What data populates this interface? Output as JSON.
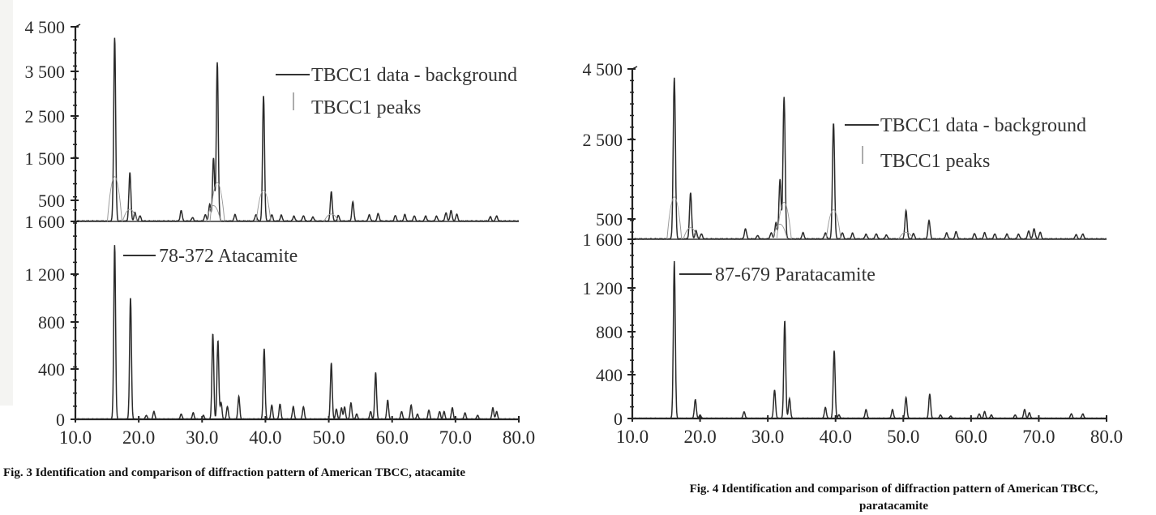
{
  "figures": [
    {
      "id": "fig3",
      "caption": "Fig. 3  Identification and comparison of diffraction pattern of American TBCC, atacamite",
      "caption_lines": [
        "Fig. 3  Identification and comparison of diffraction pattern of American TBCC, atacamite"
      ],
      "legend_top": {
        "line_label": "TBCC1 data - background",
        "peaks_label": "TBCC1 peaks"
      },
      "legend_bottom": {
        "line_label": "78-372 Atacamite"
      }
    },
    {
      "id": "fig4",
      "caption": "Fig. 4  Identification and comparison of diffraction pattern of American TBCC, paratacamite",
      "caption_lines": [
        "Fig. 4  Identification and comparison of diffraction pattern of American TBCC,",
        "paratacamite"
      ],
      "legend_top": {
        "line_label": "TBCC1 data - background",
        "peaks_label": "TBCC1 peaks"
      },
      "legend_bottom": {
        "line_label": "87-679 Paratacamite"
      }
    }
  ],
  "chart_data": [
    {
      "type": "line",
      "title": "Fig. 3  Identification and comparison of diffraction pattern of American TBCC, atacamite",
      "xlabel": "",
      "ylabel": "",
      "x_ticks": [
        "10.0",
        "20.0",
        "30.0",
        "40.0",
        "50.0",
        "60.0",
        "70.0",
        "80.0"
      ],
      "xlim": [
        10,
        80
      ],
      "panels": [
        {
          "name": "top",
          "y_ticks": [
            {
              "label": "4 500",
              "value": 4500
            },
            {
              "label": "3 500",
              "value": 3500
            },
            {
              "label": "2 500",
              "value": 2500
            },
            {
              "label": "1 500",
              "value": 1500
            },
            {
              "label": "500",
              "value": 500
            }
          ],
          "ylim": [
            0,
            4500
          ],
          "legend": [
            "TBCC1 data - background",
            "TBCC1 peaks"
          ],
          "series": [
            {
              "name": "TBCC1 data - background",
              "peaks": [
                [
                  16.2,
                  4250
                ],
                [
                  18.6,
                  1150
                ],
                [
                  19.4,
                  200
                ],
                [
                  20.2,
                  120
                ],
                [
                  26.7,
                  250
                ],
                [
                  28.5,
                  80
                ],
                [
                  30.5,
                  150
                ],
                [
                  31.2,
                  400
                ],
                [
                  31.8,
                  1500
                ],
                [
                  32.4,
                  3700
                ],
                [
                  35.2,
                  150
                ],
                [
                  38.5,
                  150
                ],
                [
                  39.7,
                  2950
                ],
                [
                  41.0,
                  150
                ],
                [
                  42.5,
                  140
                ],
                [
                  44.5,
                  120
                ],
                [
                  46.0,
                  130
                ],
                [
                  47.5,
                  100
                ],
                [
                  50.4,
                  700
                ],
                [
                  51.5,
                  130
                ],
                [
                  53.8,
                  450
                ],
                [
                  56.4,
                  150
                ],
                [
                  57.8,
                  180
                ],
                [
                  60.5,
                  130
                ],
                [
                  62.0,
                  150
                ],
                [
                  63.5,
                  120
                ],
                [
                  65.3,
                  120
                ],
                [
                  67.0,
                  120
                ],
                [
                  68.5,
                  200
                ],
                [
                  69.3,
                  250
                ],
                [
                  70.2,
                  160
                ],
                [
                  75.5,
                  100
                ],
                [
                  76.5,
                  120
                ]
              ]
            }
          ]
        },
        {
          "name": "bottom",
          "y_ticks": [
            {
              "label": "1 600",
              "value": 1600
            },
            {
              "label": "1 200",
              "value": 1200
            },
            {
              "label": "800",
              "value": 800
            },
            {
              "label": "400",
              "value": 400
            },
            {
              "label": "0",
              "value": 0
            }
          ],
          "ylim": [
            0,
            1600
          ],
          "legend": [
            "78-372 Atacamite"
          ],
          "series": [
            {
              "name": "78-372 Atacamite",
              "peaks": [
                [
                  16.2,
                  1420
                ],
                [
                  18.7,
                  1000
                ],
                [
                  21.2,
                  30
                ],
                [
                  22.4,
                  60
                ],
                [
                  26.7,
                  40
                ],
                [
                  28.6,
                  50
                ],
                [
                  30.2,
                  30
                ],
                [
                  31.7,
                  700
                ],
                [
                  32.5,
                  640
                ],
                [
                  33.0,
                  130
                ],
                [
                  34.0,
                  100
                ],
                [
                  35.8,
                  180
                ],
                [
                  39.8,
                  570
                ],
                [
                  41.0,
                  110
                ],
                [
                  42.3,
                  120
                ],
                [
                  44.4,
                  100
                ],
                [
                  46.0,
                  100
                ],
                [
                  50.4,
                  450
                ],
                [
                  51.2,
                  80
                ],
                [
                  52.0,
                  90
                ],
                [
                  52.5,
                  95
                ],
                [
                  53.5,
                  130
                ],
                [
                  54.4,
                  40
                ],
                [
                  56.6,
                  60
                ],
                [
                  57.4,
                  370
                ],
                [
                  59.3,
                  150
                ],
                [
                  61.5,
                  60
                ],
                [
                  63.0,
                  110
                ],
                [
                  64.0,
                  40
                ],
                [
                  65.8,
                  70
                ],
                [
                  67.5,
                  60
                ],
                [
                  68.2,
                  60
                ],
                [
                  69.5,
                  90
                ],
                [
                  71.5,
                  50
                ],
                [
                  73.5,
                  30
                ],
                [
                  75.9,
                  90
                ],
                [
                  76.5,
                  60
                ]
              ]
            }
          ]
        }
      ]
    },
    {
      "type": "line",
      "title": "Fig. 4  Identification and comparison of diffraction pattern of American TBCC, paratacamite",
      "xlabel": "",
      "ylabel": "",
      "x_ticks": [
        "10.0",
        "20.0",
        "30.0",
        "40.0",
        "50.0",
        "60.0",
        "70.0",
        "80.0"
      ],
      "xlim": [
        10,
        80
      ],
      "panels": [
        {
          "name": "top",
          "y_ticks": [
            {
              "label": "4 500",
              "value": 4500
            },
            {
              "label": "2 500",
              "value": 2500
            },
            {
              "label": "500",
              "value": 500
            }
          ],
          "ylim": [
            0,
            4500
          ],
          "legend": [
            "TBCC1 data - background",
            "TBCC1 peaks"
          ],
          "series": [
            {
              "name": "TBCC1 data - background",
              "peaks": [
                [
                  16.2,
                  4250
                ],
                [
                  18.6,
                  1150
                ],
                [
                  19.4,
                  200
                ],
                [
                  20.2,
                  120
                ],
                [
                  26.7,
                  250
                ],
                [
                  28.5,
                  80
                ],
                [
                  30.5,
                  150
                ],
                [
                  31.2,
                  400
                ],
                [
                  31.8,
                  1500
                ],
                [
                  32.4,
                  3700
                ],
                [
                  35.2,
                  150
                ],
                [
                  38.5,
                  150
                ],
                [
                  39.7,
                  2950
                ],
                [
                  41.0,
                  150
                ],
                [
                  42.5,
                  140
                ],
                [
                  44.5,
                  120
                ],
                [
                  46.0,
                  130
                ],
                [
                  47.5,
                  100
                ],
                [
                  50.4,
                  700
                ],
                [
                  51.5,
                  130
                ],
                [
                  53.8,
                  450
                ],
                [
                  56.4,
                  150
                ],
                [
                  57.8,
                  180
                ],
                [
                  60.5,
                  130
                ],
                [
                  62.0,
                  150
                ],
                [
                  63.5,
                  120
                ],
                [
                  65.3,
                  120
                ],
                [
                  67.0,
                  120
                ],
                [
                  68.5,
                  200
                ],
                [
                  69.3,
                  250
                ],
                [
                  70.2,
                  160
                ],
                [
                  75.5,
                  100
                ],
                [
                  76.5,
                  120
                ]
              ]
            }
          ]
        },
        {
          "name": "bottom",
          "y_ticks": [
            {
              "label": "1 600",
              "value": 1600
            },
            {
              "label": "1 200",
              "value": 1200
            },
            {
              "label": "800",
              "value": 800
            },
            {
              "label": "400",
              "value": 400
            },
            {
              "label": "0",
              "value": 0
            }
          ],
          "ylim": [
            0,
            1600
          ],
          "legend": [
            "87-679 Paratacamite"
          ],
          "series": [
            {
              "name": "87-679 Paratacamite",
              "peaks": [
                [
                  16.2,
                  1420
                ],
                [
                  19.3,
                  170
                ],
                [
                  20.0,
                  30
                ],
                [
                  26.5,
                  60
                ],
                [
                  31.0,
                  260
                ],
                [
                  32.5,
                  900
                ],
                [
                  33.2,
                  180
                ],
                [
                  38.5,
                  100
                ],
                [
                  39.8,
                  620
                ],
                [
                  40.5,
                  30
                ],
                [
                  44.5,
                  80
                ],
                [
                  48.4,
                  80
                ],
                [
                  50.4,
                  190
                ],
                [
                  53.9,
                  220
                ],
                [
                  55.5,
                  30
                ],
                [
                  57.0,
                  20
                ],
                [
                  61.2,
                  40
                ],
                [
                  62.0,
                  60
                ],
                [
                  63.0,
                  30
                ],
                [
                  66.5,
                  30
                ],
                [
                  67.9,
                  80
                ],
                [
                  68.6,
                  50
                ],
                [
                  74.8,
                  40
                ],
                [
                  76.5,
                  40
                ]
              ]
            }
          ]
        }
      ]
    }
  ]
}
